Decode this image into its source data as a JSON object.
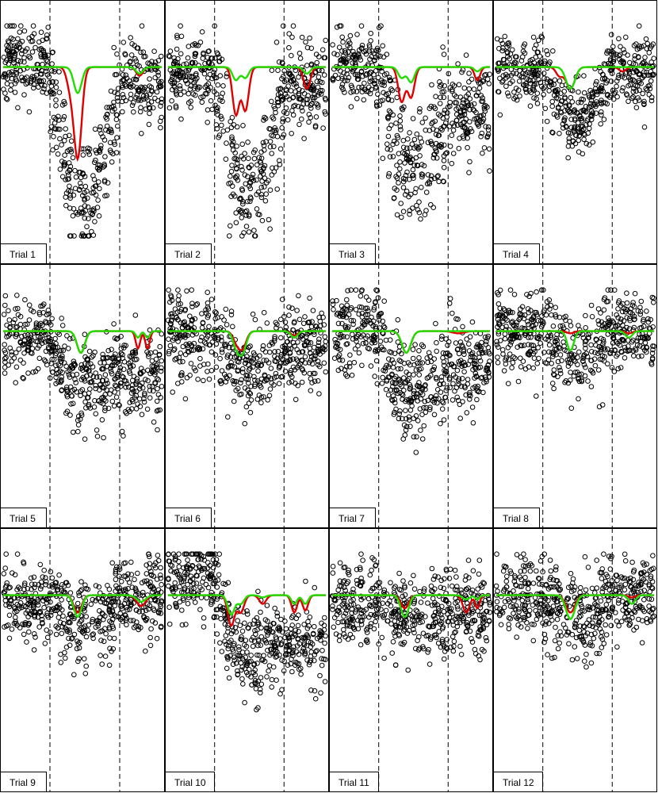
{
  "chart_data": {
    "type": "scatter",
    "layout": {
      "rows": 3,
      "cols": 4
    },
    "point_style": "open-circle",
    "series_colors": {
      "points": "#000000",
      "fit_red": "#e00000",
      "fit_green": "#22dd00"
    },
    "panel_x_range": [
      0,
      1
    ],
    "panel_y_range": [
      0,
      1
    ],
    "vlines_x": [
      0.295,
      0.735
    ],
    "panels": [
      {
        "label": "Trial  1",
        "baseline": 0.8,
        "seed": 11,
        "dips": [
          {
            "c": 0.47,
            "w": 0.035,
            "dr": 0.42,
            "dg": 0.12
          },
          {
            "c": 0.86,
            "w": 0.03,
            "dr": 0.04,
            "dg": 0.03
          }
        ],
        "red_extra": [
          {
            "c": 0.42,
            "w": 0.03,
            "d": 0.08
          }
        ],
        "pts": {
          "pre": 0.82,
          "pre_s": 0.09,
          "mid_lo": 0.18,
          "mid_s": 0.14,
          "post": 0.72,
          "post_s": 0.1
        }
      },
      {
        "label": "Trial  2",
        "baseline": 0.8,
        "seed": 23,
        "dips": [
          {
            "c": 0.43,
            "w": 0.03,
            "dr": 0.22,
            "dg": 0.06
          },
          {
            "c": 0.49,
            "w": 0.03,
            "dr": 0.2,
            "dg": 0.05
          },
          {
            "c": 0.88,
            "w": 0.03,
            "dr": 0.1,
            "dg": 0.03
          }
        ],
        "red_extra": [],
        "pts": {
          "pre": 0.78,
          "pre_s": 0.08,
          "mid_lo": 0.22,
          "mid_s": 0.14,
          "post": 0.72,
          "post_s": 0.09
        }
      },
      {
        "label": "Trial  3",
        "baseline": 0.8,
        "seed": 37,
        "dips": [
          {
            "c": 0.44,
            "w": 0.03,
            "dr": 0.16,
            "dg": 0.05
          },
          {
            "c": 0.5,
            "w": 0.03,
            "dr": 0.14,
            "dg": 0.07
          },
          {
            "c": 0.92,
            "w": 0.025,
            "dr": 0.06,
            "dg": 0.02
          }
        ],
        "red_extra": [],
        "pts": {
          "pre": 0.8,
          "pre_s": 0.09,
          "mid_lo": 0.32,
          "mid_s": 0.13,
          "post": 0.58,
          "post_s": 0.11
        }
      },
      {
        "label": "Trial  4",
        "baseline": 0.8,
        "seed": 41,
        "dips": [
          {
            "c": 0.47,
            "w": 0.04,
            "dr": 0.1,
            "dg": 0.1
          }
        ],
        "red_extra": [
          {
            "c": 0.4,
            "w": 0.03,
            "d": 0.04
          },
          {
            "c": 0.8,
            "w": 0.03,
            "d": 0.02
          }
        ],
        "pts": {
          "pre": 0.78,
          "pre_s": 0.08,
          "mid_lo": 0.55,
          "mid_s": 0.08,
          "post": 0.78,
          "post_s": 0.08
        }
      },
      {
        "label": "Trial  5",
        "baseline": 0.8,
        "seed": 53,
        "dips": [
          {
            "c": 0.49,
            "w": 0.035,
            "dr": 0.1,
            "dg": 0.1
          },
          {
            "c": 0.85,
            "w": 0.02,
            "dr": 0.08,
            "dg": 0.03
          },
          {
            "c": 0.91,
            "w": 0.02,
            "dr": 0.08,
            "dg": 0.03
          }
        ],
        "red_extra": [],
        "pts": {
          "pre": 0.77,
          "pre_s": 0.09,
          "mid_lo": 0.54,
          "mid_s": 0.1,
          "post": 0.6,
          "post_s": 0.1
        }
      },
      {
        "label": "Trial  6",
        "baseline": 0.8,
        "seed": 67,
        "dips": [
          {
            "c": 0.43,
            "w": 0.03,
            "dr": 0.04,
            "dg": 0.06
          },
          {
            "c": 0.47,
            "w": 0.035,
            "dr": 0.08,
            "dg": 0.1
          },
          {
            "c": 0.8,
            "w": 0.03,
            "dr": 0.02,
            "dg": 0.03
          }
        ],
        "red_extra": [],
        "pts": {
          "pre": 0.78,
          "pre_s": 0.09,
          "mid_lo": 0.62,
          "mid_s": 0.09,
          "post": 0.72,
          "post_s": 0.09
        }
      },
      {
        "label": "Trial  7",
        "baseline": 0.8,
        "seed": 79,
        "dips": [
          {
            "c": 0.47,
            "w": 0.04,
            "dr": 0.1,
            "dg": 0.1
          }
        ],
        "red_extra": [
          {
            "c": 0.8,
            "w": 0.05,
            "d": 0.01
          }
        ],
        "pts": {
          "pre": 0.8,
          "pre_s": 0.1,
          "mid_lo": 0.5,
          "mid_s": 0.11,
          "post": 0.64,
          "post_s": 0.1
        }
      },
      {
        "label": "Trial  8",
        "baseline": 0.8,
        "seed": 83,
        "dips": [
          {
            "c": 0.47,
            "w": 0.03,
            "dr": 0.01,
            "dg": 0.09
          },
          {
            "c": 0.84,
            "w": 0.03,
            "dr": 0.01,
            "dg": 0.03
          }
        ],
        "red_extra": [],
        "pts": {
          "pre": 0.8,
          "pre_s": 0.09,
          "mid_lo": 0.7,
          "mid_s": 0.1,
          "post": 0.8,
          "post_s": 0.09
        }
      },
      {
        "label": "Trial  9",
        "baseline": 0.8,
        "seed": 97,
        "dips": [
          {
            "c": 0.47,
            "w": 0.035,
            "dr": 0.08,
            "dg": 0.1
          },
          {
            "c": 0.87,
            "w": 0.04,
            "dr": 0.05,
            "dg": 0.03
          }
        ],
        "red_extra": [],
        "pts": {
          "pre": 0.76,
          "pre_s": 0.1,
          "mid_lo": 0.68,
          "mid_s": 0.1,
          "post": 0.78,
          "post_s": 0.1
        }
      },
      {
        "label": "Trial  10",
        "baseline": 0.8,
        "seed": 101,
        "dips": [
          {
            "c": 0.4,
            "w": 0.03,
            "dr": 0.14,
            "dg": 0.09
          },
          {
            "c": 0.46,
            "w": 0.03,
            "dr": 0.08,
            "dg": 0.04
          },
          {
            "c": 0.6,
            "w": 0.03,
            "dr": 0.04,
            "dg": 0.01
          },
          {
            "c": 0.8,
            "w": 0.025,
            "dr": 0.08,
            "dg": 0.04
          },
          {
            "c": 0.87,
            "w": 0.025,
            "dr": 0.07,
            "dg": 0.04
          }
        ],
        "red_extra": [],
        "pts": {
          "pre": 0.88,
          "pre_s": 0.09,
          "mid_lo": 0.52,
          "mid_s": 0.1,
          "post": 0.58,
          "post_s": 0.1
        }
      },
      {
        "label": "Trial  11",
        "baseline": 0.8,
        "seed": 113,
        "dips": [
          {
            "c": 0.46,
            "w": 0.035,
            "dr": 0.06,
            "dg": 0.1
          },
          {
            "c": 0.85,
            "w": 0.03,
            "dr": 0.08,
            "dg": 0.02
          },
          {
            "c": 0.92,
            "w": 0.02,
            "dr": 0.06,
            "dg": 0.02
          }
        ],
        "red_extra": [],
        "pts": {
          "pre": 0.76,
          "pre_s": 0.1,
          "mid_lo": 0.7,
          "mid_s": 0.1,
          "post": 0.72,
          "post_s": 0.1
        }
      },
      {
        "label": "Trial  12",
        "baseline": 0.8,
        "seed": 127,
        "dips": [
          {
            "c": 0.47,
            "w": 0.04,
            "dr": 0.08,
            "dg": 0.11
          },
          {
            "c": 0.86,
            "w": 0.03,
            "dr": 0.01,
            "dg": 0.04
          }
        ],
        "red_extra": [],
        "pts": {
          "pre": 0.8,
          "pre_s": 0.09,
          "mid_lo": 0.7,
          "mid_s": 0.1,
          "post": 0.8,
          "post_s": 0.09
        }
      }
    ]
  }
}
